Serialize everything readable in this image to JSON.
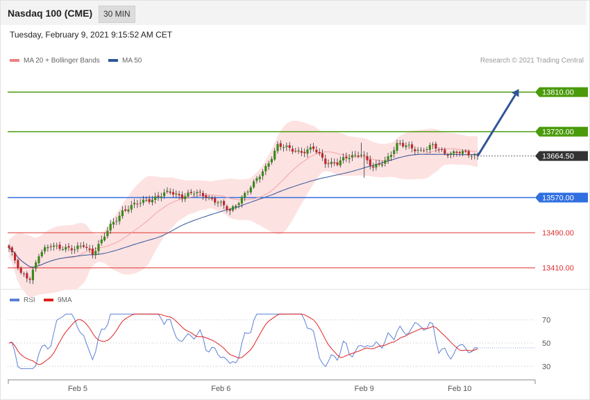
{
  "header": {
    "title": "Nasdaq 100 (CME)",
    "timeframe": "30 MIN",
    "timestamp": "Tuesday, February 9, 2021 9:15:52 AM CET"
  },
  "legend": {
    "price": [
      {
        "label": "MA 20 + Bollinger Bands",
        "color": "#f08080"
      },
      {
        "label": "MA 50",
        "color": "#2f5597"
      }
    ],
    "rsi": [
      {
        "label": "RSI",
        "color": "#5b7fd6"
      },
      {
        "label": "9MA",
        "color": "#e02020"
      }
    ],
    "credit": "Research © 2021 Trading Central"
  },
  "chart_data": [
    {
      "type": "candlestick",
      "name": "price",
      "levels": [
        {
          "value": 13810.0,
          "label": "13810.00",
          "kind": "resistance",
          "color": "#4a9a0a"
        },
        {
          "value": 13720.0,
          "label": "13720.00",
          "kind": "resistance",
          "color": "#4a9a0a"
        },
        {
          "value": 13664.5,
          "label": "13664.50",
          "kind": "last",
          "color": "#333333"
        },
        {
          "value": 13570.0,
          "label": "13570.00",
          "kind": "pivot",
          "color": "#2f6fe0"
        },
        {
          "value": 13490.0,
          "label": "13490.00",
          "kind": "support",
          "color": "#e03030"
        },
        {
          "value": 13410.0,
          "label": "13410.00",
          "kind": "support",
          "color": "#e03030"
        }
      ],
      "ylim": [
        13370,
        13860
      ],
      "x_labels": [
        {
          "index": 23,
          "label": "Feb 5"
        },
        {
          "index": 71,
          "label": "Feb 6"
        },
        {
          "index": 119,
          "label": "Feb 9"
        },
        {
          "index": 151,
          "label": "Feb 10"
        }
      ],
      "target_arrow": {
        "from_index": 157,
        "from": 13664.5,
        "to_index": 171,
        "to": 13810
      }
    },
    {
      "type": "line",
      "name": "rsi",
      "ylim": [
        20,
        80
      ],
      "levels": [
        70,
        50,
        30
      ]
    }
  ]
}
